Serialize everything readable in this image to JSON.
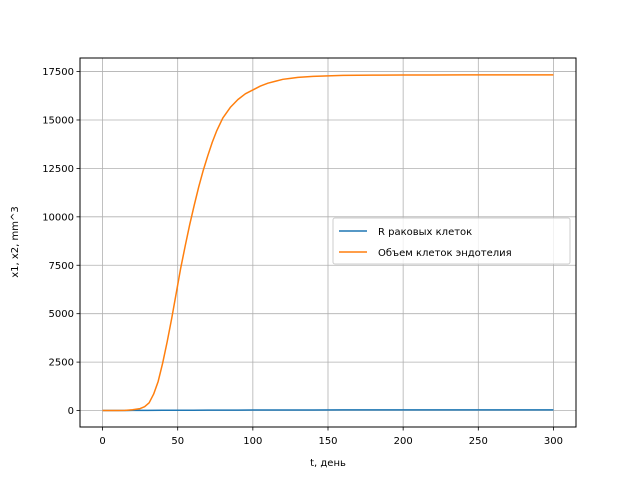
{
  "chart_data": {
    "type": "line",
    "title": "",
    "xlabel": "t, день",
    "ylabel": "x1, x2, mm^3",
    "xlim": [
      -15,
      315
    ],
    "ylim": [
      -850,
      18200
    ],
    "xticks": [
      0,
      50,
      100,
      150,
      200,
      250,
      300
    ],
    "yticks": [
      0,
      2500,
      5000,
      7500,
      10000,
      12500,
      15000,
      17500
    ],
    "grid": true,
    "legend": "center-right",
    "series": [
      {
        "name": "R раковых клеток",
        "color": "#1f77b4",
        "x": [
          0,
          10,
          20,
          30,
          40,
          50,
          60,
          70,
          80,
          90,
          100,
          120,
          140,
          160,
          180,
          200,
          220,
          240,
          260,
          280,
          300
        ],
        "y": [
          0,
          3,
          6,
          9,
          12,
          15,
          18,
          20,
          22,
          24,
          26,
          28,
          30,
          31,
          32,
          33,
          33,
          34,
          34,
          35,
          35
        ]
      },
      {
        "name": "Объем клеток эндотелия",
        "color": "#ff7f0e",
        "x": [
          0,
          10,
          15,
          20,
          25,
          28,
          31,
          34,
          37,
          40,
          43,
          46,
          49,
          52,
          55,
          58,
          61,
          64,
          67,
          70,
          73,
          76,
          80,
          85,
          90,
          95,
          100,
          105,
          110,
          115,
          120,
          125,
          130,
          140,
          150,
          160,
          170,
          180,
          200,
          220,
          240,
          260,
          280,
          300
        ],
        "y": [
          0,
          2,
          10,
          40,
          100,
          200,
          400,
          850,
          1500,
          2450,
          3550,
          4750,
          6050,
          7350,
          8500,
          9600,
          10600,
          11550,
          12400,
          13150,
          13850,
          14450,
          15100,
          15650,
          16050,
          16350,
          16550,
          16750,
          16900,
          17000,
          17100,
          17150,
          17200,
          17250,
          17280,
          17300,
          17310,
          17315,
          17320,
          17325,
          17330,
          17330,
          17330,
          17330
        ]
      }
    ]
  }
}
